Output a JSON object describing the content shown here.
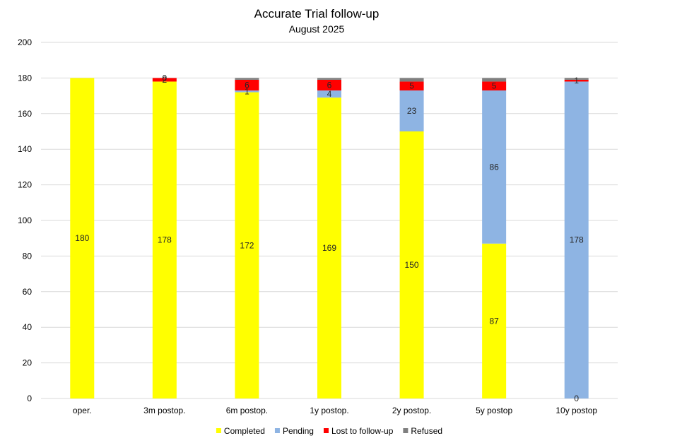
{
  "chart_data": {
    "type": "bar",
    "stacked": true,
    "title": "Accurate Trial follow-up",
    "subtitle": "August 2025",
    "categories": [
      "oper.",
      "3m postop.",
      "6m postop.",
      "1y postop.",
      "2y postop.",
      "5y postop",
      "10y postop"
    ],
    "ylim": [
      0,
      200
    ],
    "yticks": [
      0,
      20,
      40,
      60,
      80,
      100,
      120,
      140,
      160,
      180,
      200
    ],
    "grid": true,
    "legend_position": "bottom",
    "series": [
      {
        "name": "Completed",
        "color": "#ffff00",
        "values": [
          180,
          178,
          172,
          169,
          150,
          87,
          0
        ]
      },
      {
        "name": "Pending",
        "color": "#8eb4e3",
        "values": [
          0,
          0,
          1,
          4,
          23,
          86,
          178
        ]
      },
      {
        "name": "Lost to follow-up",
        "color": "#ff0000",
        "values": [
          0,
          2,
          6,
          6,
          5,
          5,
          1
        ]
      },
      {
        "name": "Refused",
        "color": "#7f7f7f",
        "values": [
          0,
          0,
          1,
          1,
          2,
          2,
          1
        ]
      }
    ],
    "data_labels": [
      [
        "180",
        "178",
        "172",
        "169",
        "150",
        "87",
        "0"
      ],
      [
        "",
        "",
        "1",
        "4",
        "23",
        "86",
        "178"
      ],
      [
        "",
        "2",
        "6",
        "6",
        "5",
        "5",
        "1"
      ],
      [
        "",
        "0",
        "",
        "",
        "",
        "",
        ""
      ]
    ]
  }
}
